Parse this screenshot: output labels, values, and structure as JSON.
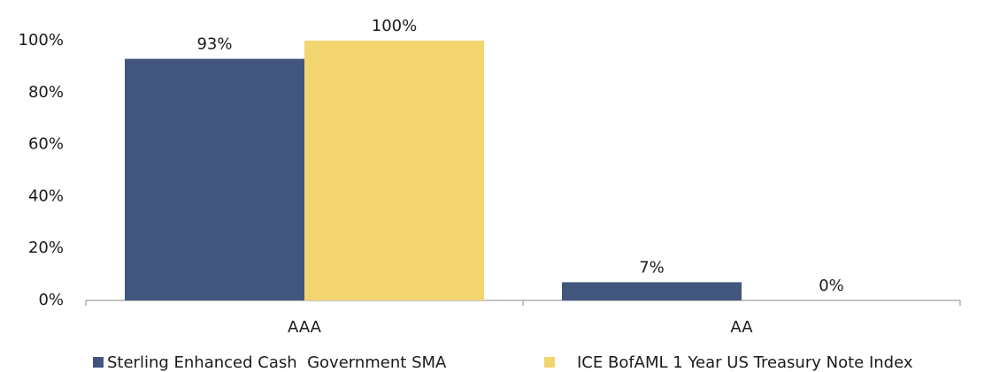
{
  "chart_data": {
    "type": "bar",
    "categories": [
      "AAA",
      "AA"
    ],
    "series": [
      {
        "name": "Sterling Enhanced Cash  Government SMA",
        "color": "#42557d",
        "values": [
          93,
          7
        ],
        "value_labels": [
          "93%",
          "7%"
        ]
      },
      {
        "name": "ICE BofAML 1 Year US Treasury Note Index",
        "color": "#f2d56f",
        "values": [
          100,
          0
        ],
        "value_labels": [
          "100%",
          "0%"
        ]
      }
    ],
    "ylim": [
      0,
      100
    ],
    "yticks": [
      {
        "value": 0,
        "label": "0%"
      },
      {
        "value": 20,
        "label": "20%"
      },
      {
        "value": 40,
        "label": "40%"
      },
      {
        "value": 60,
        "label": "60%"
      },
      {
        "value": 80,
        "label": "80%"
      },
      {
        "value": 100,
        "label": "100%"
      }
    ],
    "grid": false,
    "legend": "bottom"
  }
}
